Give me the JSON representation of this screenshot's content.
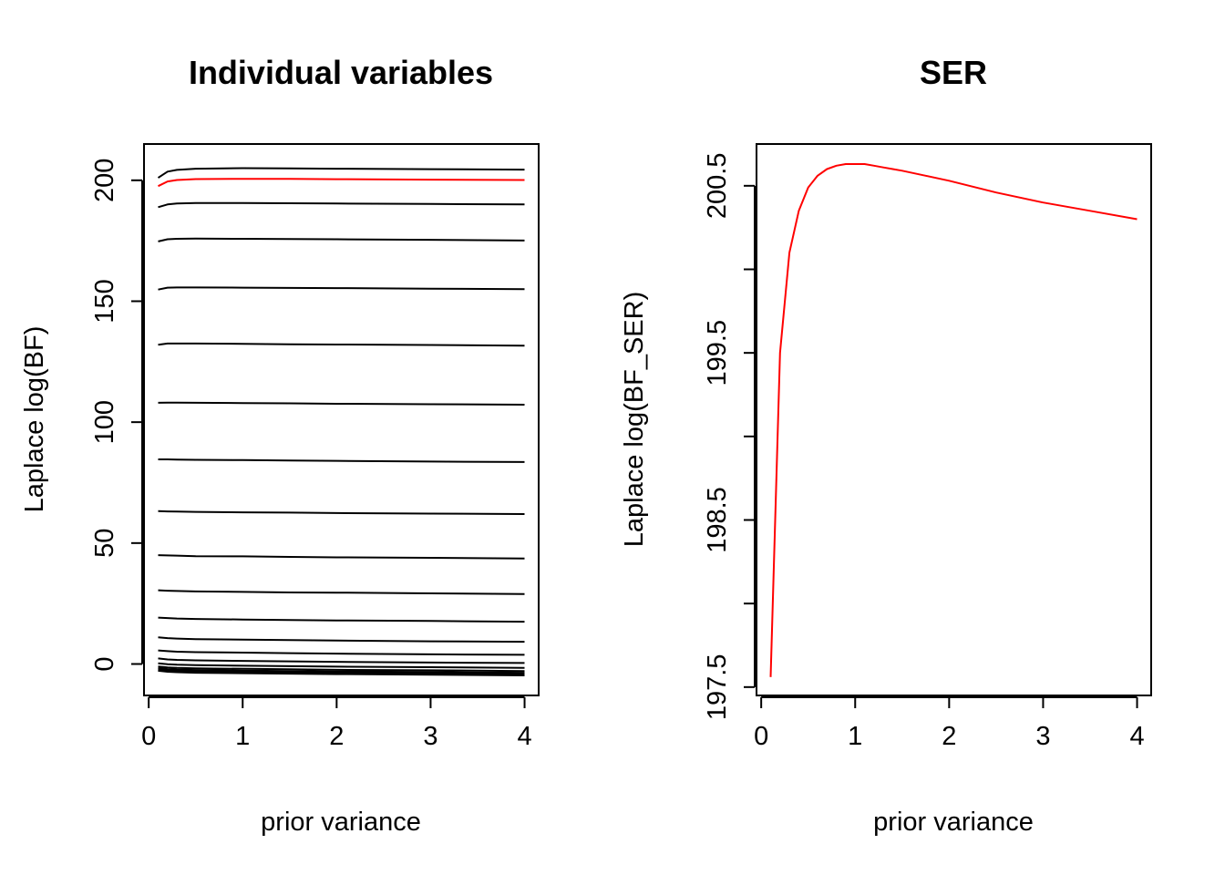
{
  "chart_data": [
    {
      "type": "line",
      "title": "Individual variables",
      "xlabel": "prior variance",
      "ylabel": "Laplace log(BF)",
      "xlim": [
        -0.05,
        4.15
      ],
      "ylim": [
        -13,
        215
      ],
      "xticks": [
        0,
        1,
        2,
        3,
        4
      ],
      "yticks": [
        0,
        50,
        100,
        150,
        200
      ],
      "grid": false,
      "legend": "none",
      "x": [
        0.1,
        0.2,
        0.3,
        0.5,
        1.0,
        1.5,
        2.0,
        3.0,
        4.0
      ],
      "series": [
        {
          "color": "#000000",
          "values": [
            201.0,
            203.6,
            204.3,
            204.8,
            205.0,
            204.9,
            204.8,
            204.6,
            204.4
          ]
        },
        {
          "color": "#000000",
          "values": [
            188.9,
            190.0,
            190.4,
            190.6,
            190.6,
            190.5,
            190.4,
            190.2,
            190.0
          ]
        },
        {
          "color": "#000000",
          "values": [
            174.7,
            175.6,
            175.8,
            175.9,
            175.8,
            175.7,
            175.6,
            175.4,
            175.1
          ]
        },
        {
          "color": "#000000",
          "values": [
            154.8,
            155.6,
            155.7,
            155.7,
            155.6,
            155.5,
            155.4,
            155.2,
            155.0
          ]
        },
        {
          "color": "#000000",
          "values": [
            132.0,
            132.5,
            132.5,
            132.5,
            132.4,
            132.2,
            132.1,
            131.9,
            131.6
          ]
        },
        {
          "color": "#000000",
          "values": [
            108.0,
            108.1,
            108.1,
            108.0,
            107.9,
            107.8,
            107.6,
            107.4,
            107.2
          ]
        },
        {
          "color": "#000000",
          "values": [
            84.6,
            84.6,
            84.5,
            84.4,
            84.3,
            84.1,
            84.0,
            83.7,
            83.5
          ]
        },
        {
          "color": "#000000",
          "values": [
            63.2,
            63.1,
            63.0,
            62.9,
            62.7,
            62.6,
            62.4,
            62.2,
            62.0
          ]
        },
        {
          "color": "#000000",
          "values": [
            45.0,
            44.9,
            44.8,
            44.6,
            44.5,
            44.3,
            44.1,
            43.9,
            43.6
          ]
        },
        {
          "color": "#000000",
          "values": [
            30.5,
            30.3,
            30.2,
            30.0,
            29.8,
            29.6,
            29.5,
            29.2,
            28.9
          ]
        },
        {
          "color": "#000000",
          "values": [
            19.2,
            19.0,
            18.8,
            18.6,
            18.4,
            18.2,
            18.0,
            17.8,
            17.5
          ]
        },
        {
          "color": "#000000",
          "values": [
            11.0,
            10.7,
            10.5,
            10.3,
            10.1,
            9.9,
            9.7,
            9.4,
            9.2
          ]
        },
        {
          "color": "#000000",
          "values": [
            5.6,
            5.3,
            5.1,
            4.9,
            4.7,
            4.5,
            4.3,
            4.0,
            3.8
          ]
        },
        {
          "color": "#000000",
          "values": [
            2.3,
            1.9,
            1.7,
            1.5,
            1.3,
            1.1,
            0.9,
            0.6,
            0.4
          ]
        },
        {
          "color": "#000000",
          "values": [
            0.3,
            -0.1,
            -0.3,
            -0.5,
            -0.7,
            -0.9,
            -1.1,
            -1.3,
            -1.6
          ]
        },
        {
          "color": "#000000",
          "values": [
            -1.0,
            -1.4,
            -1.6,
            -1.8,
            -2.0,
            -2.2,
            -2.4,
            -2.6,
            -2.9
          ]
        },
        {
          "color": "#000000",
          "values": [
            -1.7,
            -2.1,
            -2.3,
            -2.5,
            -2.7,
            -2.9,
            -3.1,
            -3.3,
            -3.6
          ]
        },
        {
          "color": "#000000",
          "values": [
            -2.1,
            -2.5,
            -2.7,
            -2.9,
            -3.1,
            -3.3,
            -3.5,
            -3.7,
            -4.0
          ]
        },
        {
          "color": "#000000",
          "values": [
            -2.4,
            -2.8,
            -3.0,
            -3.2,
            -3.4,
            -3.6,
            -3.8,
            -4.0,
            -4.3
          ]
        },
        {
          "color": "#000000",
          "values": [
            -2.6,
            -3.0,
            -3.2,
            -3.4,
            -3.6,
            -3.8,
            -4.0,
            -4.2,
            -4.5
          ]
        },
        {
          "color": "#000000",
          "values": [
            -2.8,
            -3.2,
            -3.4,
            -3.6,
            -3.8,
            -4.0,
            -4.2,
            -4.4,
            -4.7
          ]
        },
        {
          "color": "#ff0000",
          "values": [
            197.6,
            199.5,
            200.1,
            200.49,
            200.61,
            200.55,
            200.45,
            200.26,
            200.1
          ]
        }
      ]
    },
    {
      "type": "line",
      "title": "SER",
      "xlabel": "prior variance",
      "ylabel": "Laplace log(BF_SER)",
      "xlim": [
        -0.05,
        4.15
      ],
      "ylim": [
        197.45,
        200.75
      ],
      "xticks": [
        0,
        1,
        2,
        3,
        4
      ],
      "yticks": [
        197.5,
        198.0,
        198.5,
        199.0,
        199.5,
        200.0,
        200.5
      ],
      "ytick_labels": [
        "197.5",
        "",
        "198.5",
        "",
        "199.5",
        "",
        "200.5"
      ],
      "grid": false,
      "legend": "none",
      "x": [
        0.1,
        0.2,
        0.3,
        0.4,
        0.5,
        0.6,
        0.7,
        0.8,
        0.9,
        1.0,
        1.1,
        1.2,
        1.3,
        1.4,
        1.5,
        1.75,
        2.0,
        2.5,
        3.0,
        3.5,
        4.0
      ],
      "series": [
        {
          "color": "#ff0000",
          "values": [
            197.56,
            199.5,
            200.1,
            200.35,
            200.49,
            200.56,
            200.6,
            200.62,
            200.63,
            200.63,
            200.63,
            200.62,
            200.61,
            200.6,
            200.59,
            200.56,
            200.53,
            200.46,
            200.4,
            200.35,
            200.3
          ]
        }
      ]
    }
  ]
}
